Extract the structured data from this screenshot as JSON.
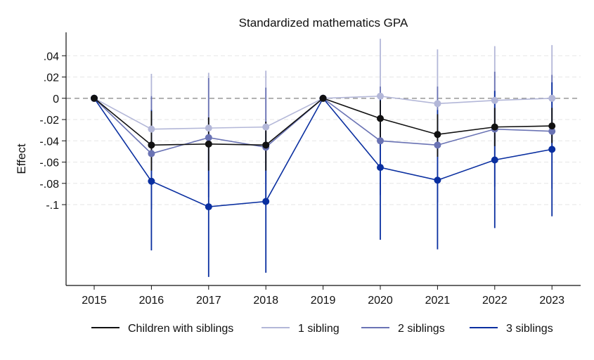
{
  "chart_data": {
    "type": "line",
    "title": "Standardized mathematics GPA",
    "xlabel": "",
    "ylabel": "Effect",
    "x": [
      2015,
      2016,
      2017,
      2018,
      2019,
      2020,
      2021,
      2022,
      2023
    ],
    "x_tick_labels": [
      "2015",
      "2016",
      "2017",
      "2018",
      "2019",
      "2020",
      "2021",
      "2022",
      "2023"
    ],
    "ylim": [
      -0.176,
      0.062
    ],
    "y_ticks": [
      0.04,
      0.02,
      0,
      -0.02,
      -0.04,
      -0.06,
      -0.08,
      -0.1
    ],
    "y_tick_labels": [
      ".04",
      ".02",
      "0",
      "-.02",
      "-.04",
      "-.06",
      "-.08",
      "-.1"
    ],
    "grid": true,
    "reference_line": 0,
    "legend_position": "bottom",
    "series": [
      {
        "name": "Children with siblings",
        "color": "#111111",
        "values": [
          0,
          -0.044,
          -0.043,
          -0.044,
          0,
          -0.019,
          -0.034,
          -0.027,
          -0.026
        ],
        "ci_low": [
          0,
          -0.068,
          -0.068,
          -0.068,
          0,
          -0.037,
          -0.055,
          -0.045,
          -0.042
        ],
        "ci_high": [
          0,
          -0.012,
          -0.018,
          -0.022,
          0,
          -0.002,
          -0.015,
          -0.009,
          -0.009
        ]
      },
      {
        "name": "1 sibling",
        "color": "#b3b7d8",
        "values": [
          0,
          -0.029,
          -0.028,
          -0.027,
          0,
          0.002,
          -0.005,
          -0.002,
          0
        ],
        "ci_low": [
          0,
          -0.082,
          -0.083,
          -0.079,
          0,
          -0.05,
          -0.057,
          -0.053,
          -0.049
        ],
        "ci_high": [
          0,
          0.023,
          0.024,
          0.026,
          0,
          0.056,
          0.046,
          0.049,
          0.05
        ]
      },
      {
        "name": "2 siblings",
        "color": "#6a73b4",
        "values": [
          0,
          -0.052,
          -0.037,
          -0.046,
          0,
          -0.04,
          -0.044,
          -0.029,
          -0.031
        ],
        "ci_low": [
          0,
          -0.104,
          -0.093,
          -0.101,
          0,
          -0.091,
          -0.098,
          -0.083,
          -0.085
        ],
        "ci_high": [
          0,
          0.002,
          0.019,
          0.01,
          0,
          0.011,
          0.011,
          0.025,
          0.022
        ]
      },
      {
        "name": "3 siblings",
        "color": "#0a2fa0",
        "values": [
          0,
          -0.078,
          -0.102,
          -0.097,
          0,
          -0.065,
          -0.077,
          -0.058,
          -0.048
        ],
        "ci_low": [
          0,
          -0.143,
          -0.168,
          -0.164,
          0,
          -0.133,
          -0.142,
          -0.122,
          -0.111
        ],
        "ci_high": [
          0,
          -0.011,
          -0.036,
          -0.031,
          0,
          0.003,
          -0.011,
          0.007,
          0.015
        ]
      }
    ]
  }
}
